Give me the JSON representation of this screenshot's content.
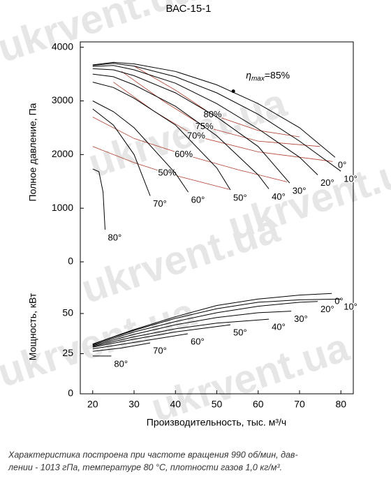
{
  "watermark": "ukrvent.ua",
  "chart_data": [
    {
      "type": "line",
      "title": "ВАС-15-1",
      "ylabel": "Полное давление, Па",
      "xlim": [
        17,
        83
      ],
      "ylim": [
        0,
        4100
      ],
      "yticks": [
        0,
        1000,
        2000,
        3000,
        4000
      ],
      "series": [
        {
          "name": "0°",
          "color": "#000000",
          "x": [
            20,
            25,
            30,
            40,
            50,
            60,
            70,
            78.6
          ],
          "values": [
            3670,
            3720,
            3690,
            3550,
            3300,
            2950,
            2500,
            1950
          ]
        },
        {
          "name": "10°",
          "color": "#000000",
          "x": [
            20,
            25,
            30,
            40,
            50,
            60,
            70,
            80
          ],
          "values": [
            3660,
            3700,
            3650,
            3450,
            3150,
            2750,
            2250,
            1690
          ]
        },
        {
          "name": "20°",
          "color": "#000000",
          "x": [
            20,
            25,
            30,
            40,
            50,
            60,
            70,
            74.4
          ],
          "values": [
            3640,
            3660,
            3580,
            3330,
            2950,
            2480,
            1950,
            1620
          ]
        },
        {
          "name": "30°",
          "color": "#000000",
          "x": [
            20,
            25,
            30,
            40,
            50,
            60,
            67.6
          ],
          "values": [
            3600,
            3580,
            3470,
            3150,
            2700,
            2150,
            1470
          ]
        },
        {
          "name": "40°",
          "color": "#000000",
          "x": [
            20,
            25,
            30,
            40,
            50,
            60,
            62.6
          ],
          "values": [
            3500,
            3450,
            3300,
            2900,
            2350,
            1620,
            1360
          ]
        },
        {
          "name": "50°",
          "color": "#000000",
          "x": [
            20,
            25,
            30,
            40,
            50,
            53.3
          ],
          "values": [
            3350,
            3250,
            3050,
            2550,
            1750,
            1340
          ]
        },
        {
          "name": "60°",
          "color": "#000000",
          "x": [
            20,
            25,
            30,
            40,
            43.1
          ],
          "values": [
            3000,
            2800,
            2500,
            1650,
            1300
          ]
        },
        {
          "name": "70°",
          "color": "#000000",
          "x": [
            20,
            25,
            30,
            33.9
          ],
          "values": [
            2850,
            2550,
            2000,
            1230
          ]
        },
        {
          "name": "80°",
          "color": "#000000",
          "x": [
            20,
            21.5,
            22.5,
            23
          ],
          "values": [
            1730,
            1680,
            1300,
            600
          ]
        }
      ],
      "efficiency_lines": [
        {
          "name": "50%",
          "color": "#b04030",
          "x": [
            20,
            30,
            38,
            53
          ],
          "values": [
            2150,
            1850,
            1650,
            1350
          ]
        },
        {
          "name": "60%",
          "color": "#b04030",
          "x": [
            20,
            30,
            42,
            55,
            67
          ],
          "values": [
            2700,
            2300,
            2000,
            1720,
            1490
          ]
        },
        {
          "name": "70%",
          "color": "#b04030",
          "x": [
            25,
            35,
            45,
            60,
            78
          ],
          "values": [
            3350,
            2800,
            2340,
            2050,
            1870
          ]
        },
        {
          "name": "75%",
          "color": "#b04030",
          "x": [
            27,
            37,
            47,
            60,
            75
          ],
          "values": [
            3550,
            3000,
            2520,
            2250,
            2150
          ]
        },
        {
          "name": "80%",
          "color": "#b04030",
          "x": [
            30,
            40,
            49,
            60,
            70
          ],
          "values": [
            3650,
            3200,
            2740,
            2450,
            2330
          ]
        }
      ],
      "max_point": {
        "x": 54,
        "y": 3180,
        "symbol": "η",
        "subscript": "max",
        "text": "=85%"
      }
    },
    {
      "type": "line",
      "ylabel": "Мощность, кВт",
      "xlabel": "Производительность, тыс. м³/ч",
      "xlim": [
        17,
        83
      ],
      "ylim": [
        0,
        75
      ],
      "yticks": [
        0,
        25,
        50
      ],
      "xticks": [
        20,
        30,
        40,
        50,
        60,
        70,
        80
      ],
      "series": [
        {
          "name": "0°",
          "color": "#000000",
          "x": [
            20,
            30,
            40,
            50,
            60,
            70,
            77.8
          ],
          "values": [
            31,
            40,
            48,
            55,
            59,
            61.5,
            62.5
          ]
        },
        {
          "name": "10°",
          "color": "#000000",
          "x": [
            20,
            30,
            40,
            50,
            60,
            70,
            80
          ],
          "values": [
            31,
            39.5,
            47,
            53,
            57,
            58.5,
            59
          ]
        },
        {
          "name": "20°",
          "color": "#000000",
          "x": [
            20,
            30,
            40,
            50,
            60,
            70,
            74.4
          ],
          "values": [
            30.5,
            38.5,
            45,
            50.5,
            54.5,
            57,
            57.5
          ]
        },
        {
          "name": "30°",
          "color": "#000000",
          "x": [
            20,
            30,
            40,
            50,
            60,
            68
          ],
          "values": [
            30,
            37,
            43,
            47.5,
            50.5,
            51.5
          ]
        },
        {
          "name": "40°",
          "color": "#000000",
          "x": [
            20,
            30,
            40,
            50,
            62.6
          ],
          "values": [
            29.5,
            35.5,
            40.5,
            44,
            46.5
          ]
        },
        {
          "name": "50°",
          "color": "#000000",
          "x": [
            20,
            30,
            40,
            53.3
          ],
          "values": [
            29,
            34,
            38.5,
            43
          ]
        },
        {
          "name": "60°",
          "color": "#000000",
          "x": [
            20,
            30,
            43
          ],
          "values": [
            28,
            32,
            37.4
          ]
        },
        {
          "name": "70°",
          "color": "#000000",
          "x": [
            20,
            27,
            33.9
          ],
          "values": [
            26.5,
            28.5,
            31.7
          ]
        },
        {
          "name": "80°",
          "color": "#000000",
          "x": [
            20,
            24.5
          ],
          "values": [
            23.5,
            23.5
          ]
        }
      ]
    }
  ],
  "footnote": [
    "Характеристика построена при частоте вращения 990 об/мин, дав-",
    "лении - 1013 гПа, температуре 80 °С, плотности газов 1,0 кг/м³."
  ]
}
